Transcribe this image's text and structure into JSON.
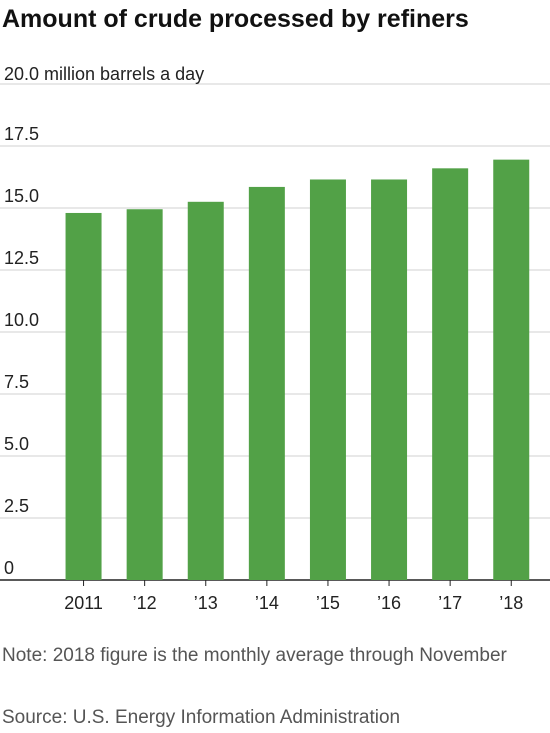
{
  "chart_data": {
    "type": "bar",
    "title": "Amount of crude processed by refiners",
    "units_label": "20.0 million barrels a day",
    "categories": [
      "2011",
      "’12",
      "’13",
      "’14",
      "’15",
      "’16",
      "’17",
      "’18"
    ],
    "values": [
      14.8,
      14.95,
      15.25,
      15.85,
      16.15,
      16.15,
      16.6,
      16.95
    ],
    "ylim": [
      0,
      20
    ],
    "yticks": [
      "0",
      "2.5",
      "5.0",
      "7.5",
      "10.0",
      "12.5",
      "15.0",
      "17.5"
    ],
    "ytick_values": [
      0,
      2.5,
      5,
      7.5,
      10,
      12.5,
      15,
      17.5
    ],
    "bar_color": "#52a147",
    "grid": true
  },
  "note": "Note: 2018 figure is the monthly average through November",
  "source": "Source: U.S. Energy Information Administration"
}
